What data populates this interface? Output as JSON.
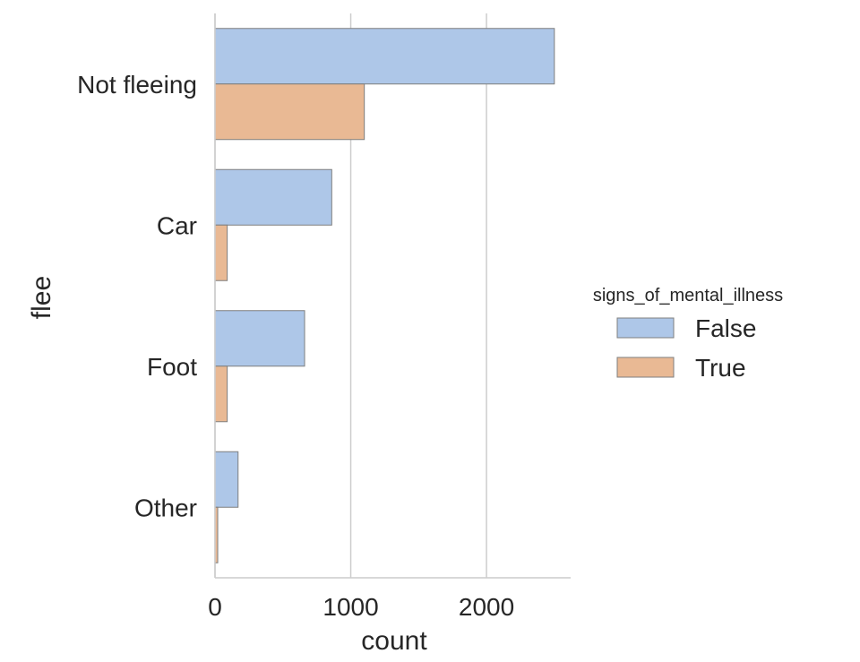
{
  "chart_data": {
    "type": "bar",
    "orientation": "horizontal",
    "title": "",
    "xlabel": "count",
    "ylabel": "flee",
    "categories": [
      "Not fleeing",
      "Car",
      "Foot",
      "Other"
    ],
    "series": [
      {
        "name": "False",
        "values": [
          2500,
          860,
          660,
          170
        ],
        "color": "#aec7e8"
      },
      {
        "name": "True",
        "values": [
          1100,
          90,
          90,
          20
        ],
        "color": "#e9b994"
      }
    ],
    "xlim": [
      0,
      2620
    ],
    "xticks": [
      0,
      1000,
      2000
    ],
    "grid": "vertical",
    "legend": {
      "title": "signs_of_mental_illness",
      "placement": "right"
    }
  }
}
